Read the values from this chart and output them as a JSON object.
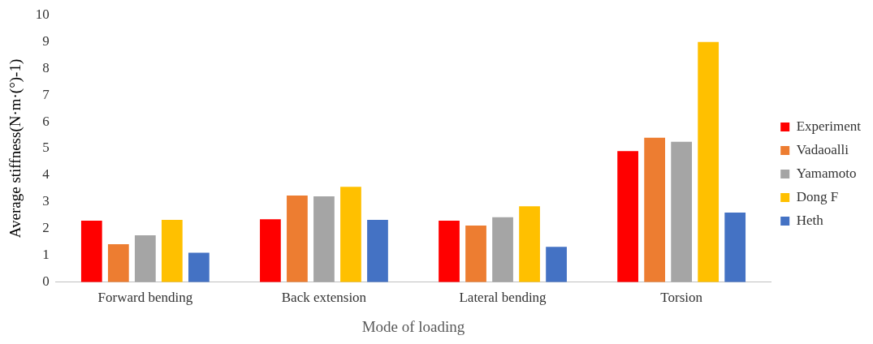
{
  "chart_data": {
    "type": "bar",
    "xlabel": "Mode of loading",
    "ylabel": "Average stiffness(N·m·(°)-1)",
    "categories": [
      "Forward bending",
      "Back extension",
      "Lateral bending",
      "Torsion"
    ],
    "series": [
      {
        "name": "Experiment",
        "color": "#ff0000",
        "values": [
          2.3,
          2.35,
          2.3,
          4.9
        ]
      },
      {
        "name": "Vadaoalli",
        "color": "#ed7d31",
        "values": [
          1.42,
          3.24,
          2.12,
          5.4
        ]
      },
      {
        "name": "Yamamoto",
        "color": "#a5a5a5",
        "values": [
          1.75,
          3.21,
          2.43,
          5.25
        ]
      },
      {
        "name": "Dong F",
        "color": "#ffc000",
        "values": [
          2.33,
          3.57,
          2.84,
          8.98
        ]
      },
      {
        "name": "Heth",
        "color": "#4472c4",
        "values": [
          1.1,
          2.33,
          1.32,
          2.6
        ]
      }
    ],
    "ylim": [
      0,
      10
    ],
    "yticks": [
      0,
      1,
      2,
      3,
      4,
      5,
      6,
      7,
      8,
      9,
      10
    ],
    "grid": false,
    "legend": "right"
  }
}
